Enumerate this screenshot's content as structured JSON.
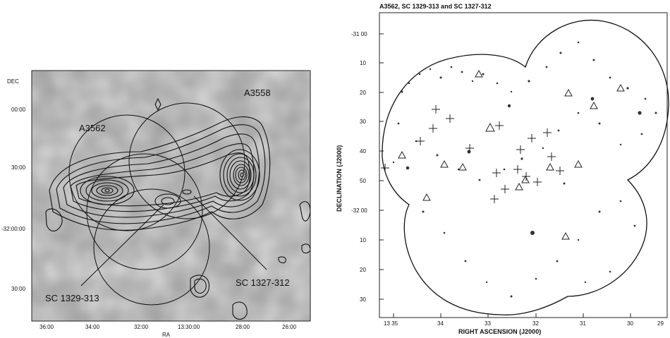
{
  "left_panel": {
    "dec_label": "DEC",
    "ra_label": "RA",
    "dec_ticks": [
      "00:00",
      "30:00",
      "-32:00:00",
      "30:00"
    ],
    "ra_ticks": [
      "36:00",
      "34:00",
      "32:00",
      "13:30:00",
      "28:00",
      "26:00"
    ],
    "labels": {
      "a3562": "A3562",
      "a3558": "A3558",
      "sc1329": "SC 1329-313",
      "sc1327": "SC 1327-312"
    }
  },
  "right_panel": {
    "title": "A3562, SC 1329-313 and SC 1327-312",
    "ylabel": "DECLINATION (J2000)",
    "xlabel": "RIGHT ASCENSION (J2000)",
    "dec_ticks": [
      "-31 00",
      "10",
      "20",
      "30",
      "40",
      "50",
      "-32 00",
      "10",
      "20",
      "30"
    ],
    "ra_ticks": [
      "13 35",
      "34",
      "33",
      "32",
      "31",
      "30",
      "29"
    ]
  }
}
